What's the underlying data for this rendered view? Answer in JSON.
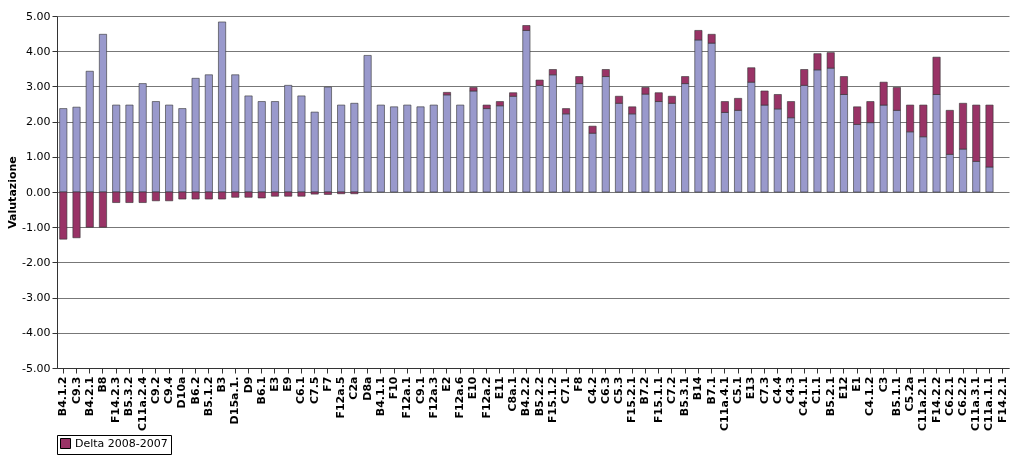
{
  "chart_data": {
    "type": "bar",
    "stacked": true,
    "ylabel": "Valutazione",
    "legend": "bottom",
    "grid": "y",
    "categories": [
      "B4.1.2",
      "C9.3",
      "B4.2.1",
      "B8",
      "F14.2.3",
      "B5.3.2",
      "C11a.2.4",
      "C9.2",
      "C9.4",
      "D10a",
      "B6.2",
      "B5.1.2",
      "B3",
      "D15a.1.",
      "D9",
      "B6.1",
      "E3",
      "E9",
      "C6.1",
      "C7.5",
      "F7",
      "F12a.5",
      "C2a",
      "D8a",
      "B4.1.1",
      "F10",
      "F12a.1",
      "C9.1",
      "F12a.3",
      "E2",
      "F12a.6",
      "E10",
      "F12a.2",
      "E11",
      "C8a.1",
      "B4.2.2",
      "B5.2.2",
      "F15.1.2",
      "C7.1",
      "F8",
      "C4.2",
      "C6.3",
      "C5.3",
      "F15.2.1",
      "B7.2",
      "F15.1.1",
      "C7.2",
      "B5.3.1",
      "B14",
      "B7.1",
      "C11a.4.1",
      "C5.1",
      "E13",
      "C7.3",
      "C4.4",
      "C4.3",
      "C4.1.1",
      "C1.1",
      "B5.2.1",
      "E12",
      "E1",
      "C4.1.2",
      "C3",
      "B5.1.1",
      "C5.2a",
      "C11a.2.1",
      "F14.2.2",
      "C6.2.1",
      "C6.2.2",
      "C11a.3.1",
      "C11a.1.1",
      "F14.2.1"
    ],
    "series": [
      {
        "color": "#9999cc",
        "values": [
          2.37,
          2.41,
          3.43,
          4.48,
          2.47,
          2.47,
          3.08,
          2.57,
          2.47,
          2.37,
          3.23,
          3.33,
          4.83,
          3.33,
          2.73,
          2.57,
          2.57,
          3.03,
          2.73,
          2.27,
          2.98,
          2.47,
          2.52,
          3.88,
          2.47,
          2.42,
          2.47,
          2.42,
          2.47,
          2.76,
          2.47,
          2.87,
          2.37,
          2.45,
          2.72,
          4.59,
          3.03,
          3.33,
          2.22,
          3.08,
          1.67,
          3.28,
          2.52,
          2.22,
          2.78,
          2.57,
          2.52,
          3.08,
          4.32,
          4.23,
          2.26,
          2.32,
          3.12,
          2.47,
          2.36,
          2.11,
          3.03,
          3.47,
          3.52,
          2.77,
          1.92,
          1.97,
          2.47,
          2.32,
          1.71,
          1.57,
          2.77,
          1.07,
          1.22,
          0.87,
          0.71,
          null
        ]
      },
      {
        "name": "Delta 2008-2007",
        "color": "#993366",
        "values": [
          -1.34,
          -1.3,
          -1.0,
          -1.0,
          -0.3,
          -0.3,
          -0.3,
          -0.25,
          -0.25,
          -0.2,
          -0.2,
          -0.2,
          -0.2,
          -0.15,
          -0.15,
          -0.17,
          -0.12,
          -0.12,
          -0.12,
          -0.06,
          -0.07,
          -0.05,
          -0.05,
          null,
          null,
          null,
          null,
          null,
          null,
          0.07,
          null,
          0.1,
          0.1,
          0.12,
          0.1,
          0.14,
          0.15,
          0.15,
          0.15,
          0.2,
          0.2,
          0.2,
          0.2,
          0.2,
          0.19,
          0.25,
          0.2,
          0.2,
          0.27,
          0.25,
          0.31,
          0.34,
          0.41,
          0.4,
          0.41,
          0.46,
          0.45,
          0.46,
          0.44,
          0.51,
          0.5,
          0.6,
          0.65,
          0.65,
          0.76,
          0.9,
          1.06,
          1.25,
          1.3,
          1.6,
          1.76,
          null
        ]
      }
    ],
    "ylim": [
      -5,
      5
    ],
    "yticks": [
      {
        "value": -5,
        "label": "-5.00"
      },
      {
        "value": -4,
        "label": "-4.00"
      },
      {
        "value": -3,
        "label": "-3.00"
      },
      {
        "value": -2,
        "label": "-2.00"
      },
      {
        "value": -1,
        "label": "-1.00"
      },
      {
        "value": 0,
        "label": "0.00"
      },
      {
        "value": 1,
        "label": "1.00"
      },
      {
        "value": 2,
        "label": "2.00"
      },
      {
        "value": 3,
        "label": "3.00"
      },
      {
        "value": 4,
        "label": "4.00"
      },
      {
        "value": 5,
        "label": "5.00"
      }
    ]
  }
}
